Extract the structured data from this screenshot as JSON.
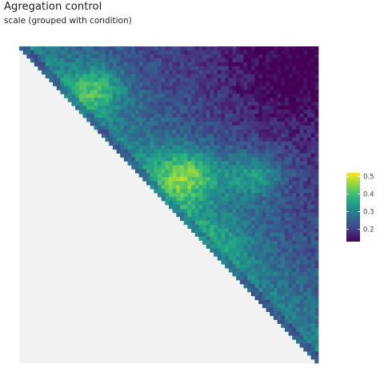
{
  "chart_data": {
    "type": "heatmap",
    "title": "Agregation control",
    "subtitle": "scale (grouped with condition)",
    "xlabel": "",
    "ylabel": "",
    "shape": "upper-triangle",
    "bins": 80,
    "colormap": "viridis",
    "na_color": "#f2f2f2",
    "legend": {
      "placement": "right",
      "min": 0.13,
      "max": 0.52,
      "ticks": [
        0.2,
        0.3,
        0.4,
        0.5
      ],
      "tick_labels": [
        "0.2",
        "0.3",
        "0.4",
        "0.5"
      ]
    },
    "value_range": [
      0.13,
      0.52
    ]
  }
}
